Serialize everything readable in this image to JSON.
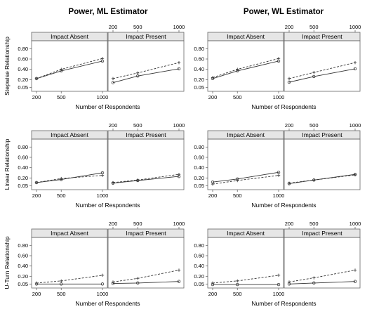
{
  "figure": {
    "column_titles": [
      "Power, ML Estimator",
      "Power, WL Estimator"
    ],
    "row_labels": [
      "Stepwise Relationship",
      "Linear Relationship",
      "U-Turn Relationship"
    ],
    "panel_labels": [
      "Impact Absent",
      "Impact Present"
    ],
    "x_label": "Number of Respondents",
    "x_ticks": [
      "200",
      "500",
      "1000"
    ],
    "y_ticks": [
      "0.05",
      "0.20",
      "0.40",
      "0.60",
      "0.80"
    ]
  },
  "colors": {
    "line": "#333333",
    "strip": "#e6e6e6",
    "frame": "#666666"
  },
  "chart_data": [
    {
      "type": "line",
      "title": "Power, ML Estimator",
      "row": "Stepwise Relationship",
      "panel": "Impact Absent",
      "x": [
        200,
        500,
        1000
      ],
      "xlabel": "Number of Respondents",
      "ylim": [
        0,
        0.9
      ],
      "series": [
        {
          "style": "solid",
          "values": [
            0.22,
            0.37,
            0.56
          ]
        },
        {
          "style": "dashed",
          "values": [
            0.22,
            0.4,
            0.61
          ]
        }
      ]
    },
    {
      "type": "line",
      "title": "Power, ML Estimator",
      "row": "Stepwise Relationship",
      "panel": "Impact Present",
      "x": [
        200,
        500,
        1000
      ],
      "xlabel": "Number of Respondents",
      "ylim": [
        0,
        0.9
      ],
      "series": [
        {
          "style": "solid",
          "values": [
            0.14,
            0.27,
            0.41
          ]
        },
        {
          "style": "dashed",
          "values": [
            0.22,
            0.33,
            0.53
          ]
        }
      ]
    },
    {
      "type": "line",
      "title": "Power, WL Estimator",
      "row": "Stepwise Relationship",
      "panel": "Impact Absent",
      "x": [
        200,
        500,
        1000
      ],
      "xlabel": "Number of Respondents",
      "ylim": [
        0,
        0.9
      ],
      "series": [
        {
          "style": "solid",
          "values": [
            0.22,
            0.37,
            0.56
          ]
        },
        {
          "style": "dashed",
          "values": [
            0.24,
            0.4,
            0.61
          ]
        }
      ]
    },
    {
      "type": "line",
      "title": "Power, WL Estimator",
      "row": "Stepwise Relationship",
      "panel": "Impact Present",
      "x": [
        200,
        500,
        1000
      ],
      "xlabel": "Number of Respondents",
      "ylim": [
        0,
        0.9
      ],
      "series": [
        {
          "style": "solid",
          "values": [
            0.15,
            0.26,
            0.41
          ]
        },
        {
          "style": "dashed",
          "values": [
            0.22,
            0.34,
            0.53
          ]
        }
      ]
    },
    {
      "type": "line",
      "title": "Power, ML Estimator",
      "row": "Linear Relationship",
      "panel": "Impact Absent",
      "x": [
        200,
        500,
        1000
      ],
      "xlabel": "Number of Respondents",
      "ylim": [
        0,
        0.9
      ],
      "series": [
        {
          "style": "solid",
          "values": [
            0.11,
            0.17,
            0.3
          ]
        },
        {
          "style": "dashed",
          "values": [
            0.11,
            0.19,
            0.25
          ]
        }
      ]
    },
    {
      "type": "line",
      "title": "Power, ML Estimator",
      "row": "Linear Relationship",
      "panel": "Impact Present",
      "x": [
        200,
        500,
        1000
      ],
      "xlabel": "Number of Respondents",
      "ylim": [
        0,
        0.9
      ],
      "series": [
        {
          "style": "solid",
          "values": [
            0.1,
            0.15,
            0.23
          ]
        },
        {
          "style": "dashed",
          "values": [
            0.11,
            0.16,
            0.27
          ]
        }
      ]
    },
    {
      "type": "line",
      "title": "Power, WL Estimator",
      "row": "Linear Relationship",
      "panel": "Impact Absent",
      "x": [
        200,
        500,
        1000
      ],
      "xlabel": "Number of Respondents",
      "ylim": [
        0,
        0.9
      ],
      "series": [
        {
          "style": "solid",
          "values": [
            0.12,
            0.18,
            0.31
          ]
        },
        {
          "style": "dashed",
          "values": [
            0.08,
            0.15,
            0.25
          ]
        }
      ]
    },
    {
      "type": "line",
      "title": "Power, WL Estimator",
      "row": "Linear Relationship",
      "panel": "Impact Present",
      "x": [
        200,
        500,
        1000
      ],
      "xlabel": "Number of Respondents",
      "ylim": [
        0,
        0.9
      ],
      "series": [
        {
          "style": "solid",
          "values": [
            0.09,
            0.16,
            0.27
          ]
        },
        {
          "style": "dashed",
          "values": [
            0.1,
            0.16,
            0.26
          ]
        }
      ]
    },
    {
      "type": "line",
      "title": "Power, ML Estimator",
      "row": "U-Turn Relationship",
      "panel": "Impact Absent",
      "x": [
        200,
        500,
        1000
      ],
      "xlabel": "Number of Respondents",
      "ylim": [
        0,
        0.9
      ],
      "series": [
        {
          "style": "solid",
          "values": [
            0.05,
            0.05,
            0.05
          ]
        },
        {
          "style": "dashed",
          "values": [
            0.07,
            0.11,
            0.22
          ]
        }
      ]
    },
    {
      "type": "line",
      "title": "Power, ML Estimator",
      "row": "U-Turn Relationship",
      "panel": "Impact Present",
      "x": [
        200,
        500,
        1000
      ],
      "xlabel": "Number of Respondents",
      "ylim": [
        0,
        0.9
      ],
      "series": [
        {
          "style": "solid",
          "values": [
            0.06,
            0.07,
            0.1
          ]
        },
        {
          "style": "dashed",
          "values": [
            0.09,
            0.16,
            0.32
          ]
        }
      ]
    },
    {
      "type": "line",
      "title": "Power, WL Estimator",
      "row": "U-Turn Relationship",
      "panel": "Impact Absent",
      "x": [
        200,
        500,
        1000
      ],
      "xlabel": "Number of Respondents",
      "ylim": [
        0,
        0.9
      ],
      "series": [
        {
          "style": "solid",
          "values": [
            0.04,
            0.04,
            0.04
          ]
        },
        {
          "style": "dashed",
          "values": [
            0.07,
            0.11,
            0.22
          ]
        }
      ]
    },
    {
      "type": "line",
      "title": "Power, WL Estimator",
      "row": "U-Turn Relationship",
      "panel": "Impact Present",
      "x": [
        200,
        500,
        1000
      ],
      "xlabel": "Number of Respondents",
      "ylim": [
        0,
        0.9
      ],
      "series": [
        {
          "style": "solid",
          "values": [
            0.05,
            0.07,
            0.1
          ]
        },
        {
          "style": "dashed",
          "values": [
            0.09,
            0.17,
            0.32
          ]
        }
      ]
    }
  ]
}
